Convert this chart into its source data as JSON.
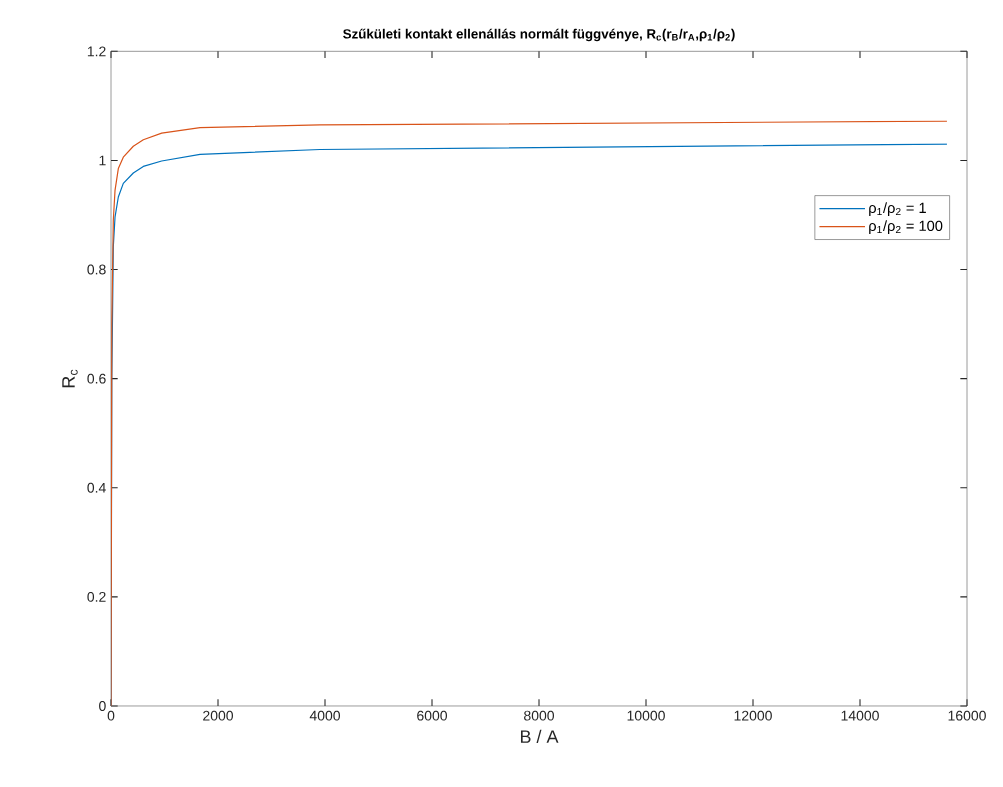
{
  "chart_data": {
    "type": "line",
    "title": "Szűkületi kontakt ellenállás normált függvénye, R$_{c}$(r$_{B}$/r$_{A}$,ρ$_{1}$/ρ$_{2}$)",
    "xlabel": "B / A",
    "ylabel": "R$_{c}$",
    "xlim": [
      0,
      16000
    ],
    "ylim": [
      0,
      1.2
    ],
    "xticks": [
      0,
      2000,
      4000,
      6000,
      8000,
      10000,
      12000,
      14000,
      16000
    ],
    "yticks": [
      0,
      0.2,
      0.4,
      0.6,
      0.8,
      1,
      1.2
    ],
    "grid": false,
    "legend": "right",
    "marker": "none",
    "line_style": "solid",
    "series": [
      {
        "name": "ρ$_{1}$/ρ$_{2}$ = 1",
        "color": "#0072bd",
        "x": [
          0,
          15,
          43,
          75,
          137,
          230,
          417,
          604,
          947,
          1664,
          3906,
          15625
        ],
        "values": [
          0,
          0.6,
          0.842,
          0.896,
          0.933,
          0.958,
          0.977,
          0.989,
          0.999,
          1.011,
          1.02,
          1.03
        ]
      },
      {
        "name": "ρ$_{1}$/ρ$_{2}$ = 100",
        "color": "#d95319",
        "x": [
          0,
          15,
          43,
          75,
          137,
          230,
          417,
          604,
          947,
          1664,
          3906,
          15625
        ],
        "values": [
          0,
          0.7,
          0.89,
          0.945,
          0.985,
          1.006,
          1.026,
          1.038,
          1.05,
          1.06,
          1.065,
          1.072
        ]
      }
    ]
  }
}
